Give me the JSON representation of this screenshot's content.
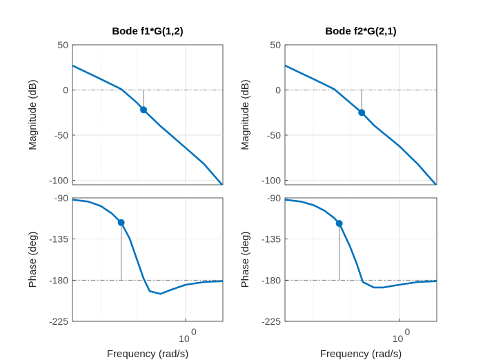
{
  "chart_data": [
    {
      "type": "line",
      "panel": "magnitude",
      "title": "Bode f1*G(1,2)",
      "xlabel": "",
      "ylabel": "Magnitude (dB)",
      "xscale": "log",
      "xlim": [
        0.2,
        1.7
      ],
      "ylim": [
        -105,
        50
      ],
      "yticks": [
        50,
        0,
        -50,
        -100
      ],
      "ytick_labels": [
        "50",
        "0",
        "-50",
        "-100"
      ],
      "xticks": [],
      "grid": true,
      "reference_line": 0,
      "marker": {
        "x": 0.55,
        "y": -22
      },
      "series": [
        {
          "x": [
            0.2,
            0.3,
            0.4,
            0.5,
            0.55,
            0.7,
            1.0,
            1.3,
            1.7
          ],
          "y": [
            27,
            12,
            1,
            -14,
            -22,
            -40,
            -64,
            -82,
            -106
          ]
        }
      ]
    },
    {
      "type": "line",
      "panel": "magnitude",
      "title": "Bode f2*G(2,1)",
      "xlabel": "",
      "ylabel": "Magnitude (dB)",
      "xscale": "log",
      "xlim": [
        0.2,
        1.7
      ],
      "ylim": [
        -105,
        50
      ],
      "yticks": [
        50,
        0,
        -50,
        -100
      ],
      "ytick_labels": [
        "50",
        "0",
        "-50",
        "-100"
      ],
      "xticks": [],
      "grid": true,
      "reference_line": 0,
      "marker": {
        "x": 0.59,
        "y": -25
      },
      "series": [
        {
          "x": [
            0.2,
            0.3,
            0.4,
            0.5,
            0.59,
            0.7,
            1.0,
            1.3,
            1.7
          ],
          "y": [
            27,
            12,
            1,
            -14,
            -25,
            -39,
            -62,
            -82,
            -106
          ]
        }
      ]
    },
    {
      "type": "line",
      "panel": "phase",
      "title": "",
      "xlabel": "Frequency  (rad/s)",
      "ylabel": "Phase (deg)",
      "xscale": "log",
      "xlim": [
        0.2,
        1.7
      ],
      "ylim": [
        -225,
        -90
      ],
      "yticks": [
        -90,
        -135,
        -180,
        -225
      ],
      "ytick_labels": [
        "-90",
        "-135",
        "-180",
        "-225"
      ],
      "xticks": [
        1.0
      ],
      "xtick_labels": [
        {
          "base": "10",
          "exp": "0"
        }
      ],
      "grid": true,
      "reference_line": -180,
      "marker": {
        "x": 0.4,
        "y": -117
      },
      "series": [
        {
          "x": [
            0.2,
            0.25,
            0.3,
            0.35,
            0.4,
            0.45,
            0.5,
            0.55,
            0.6,
            0.7,
            0.8,
            1.0,
            1.3,
            1.7
          ],
          "y": [
            -92,
            -94,
            -99,
            -107,
            -117,
            -134,
            -157,
            -178,
            -192,
            -195,
            -191,
            -185,
            -182,
            -181
          ]
        }
      ]
    },
    {
      "type": "line",
      "panel": "phase",
      "title": "",
      "xlabel": "Frequency  (rad/s)",
      "ylabel": "Phase (deg)",
      "xscale": "log",
      "xlim": [
        0.2,
        1.7
      ],
      "ylim": [
        -225,
        -90
      ],
      "yticks": [
        -90,
        -135,
        -180,
        -225
      ],
      "ytick_labels": [
        "-90",
        "-135",
        "-180",
        "-225"
      ],
      "xticks": [
        1.0
      ],
      "xtick_labels": [
        {
          "base": "10",
          "exp": "0"
        }
      ],
      "grid": true,
      "reference_line": -180,
      "marker": {
        "x": 0.43,
        "y": -118
      },
      "series": [
        {
          "x": [
            0.2,
            0.25,
            0.3,
            0.35,
            0.4,
            0.43,
            0.5,
            0.55,
            0.6,
            0.7,
            0.8,
            1.0,
            1.3,
            1.7
          ],
          "y": [
            -92,
            -94,
            -98,
            -104,
            -112,
            -118,
            -143,
            -162,
            -182,
            -188,
            -188,
            -185,
            -182,
            -181
          ]
        }
      ]
    }
  ],
  "style": {
    "line_color": "#0072BD",
    "reference_color": "#7a7a7a",
    "grid_color": "#d9d9d9"
  }
}
